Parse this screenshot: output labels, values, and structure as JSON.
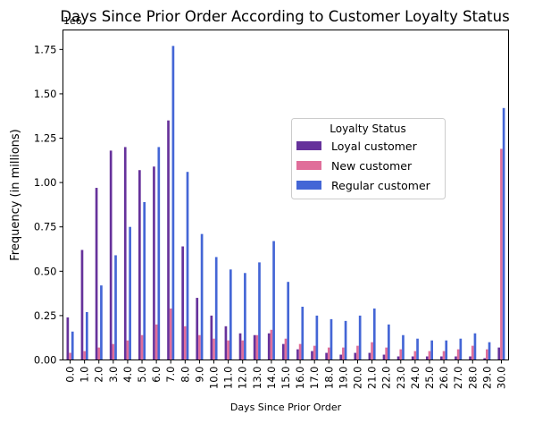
{
  "chart_data": {
    "type": "bar",
    "title": "Days Since Prior Order According to Customer Loyalty Status",
    "xlabel": "Days Since Prior Order",
    "ylabel": "Frequency (in millions)",
    "y_offset_text": "1e6",
    "ylim": [
      0,
      1.86
    ],
    "y_ticks": [
      0.0,
      0.25,
      0.5,
      0.75,
      1.0,
      1.25,
      1.5,
      1.75
    ],
    "y_tick_labels": [
      "0.00",
      "0.25",
      "0.50",
      "0.75",
      "1.00",
      "1.25",
      "1.50",
      "1.75"
    ],
    "categories": [
      "0.0",
      "1.0",
      "2.0",
      "3.0",
      "4.0",
      "5.0",
      "6.0",
      "7.0",
      "8.0",
      "9.0",
      "10.0",
      "11.0",
      "12.0",
      "13.0",
      "14.0",
      "15.0",
      "16.0",
      "17.0",
      "18.0",
      "19.0",
      "20.0",
      "21.0",
      "22.0",
      "23.0",
      "24.0",
      "25.0",
      "26.0",
      "27.0",
      "28.0",
      "29.0",
      "30.0"
    ],
    "legend": {
      "title": "Loyalty Status",
      "placement": "center-right"
    },
    "grid": false,
    "series": [
      {
        "name": "Loyal customer",
        "color": "#66329b",
        "values": [
          0.24,
          0.62,
          0.97,
          1.18,
          1.2,
          1.07,
          1.09,
          1.35,
          0.64,
          0.35,
          0.25,
          0.19,
          0.15,
          0.14,
          0.15,
          0.09,
          0.06,
          0.05,
          0.04,
          0.03,
          0.04,
          0.04,
          0.03,
          0.02,
          0.02,
          0.02,
          0.02,
          0.02,
          0.02,
          0.01,
          0.07
        ]
      },
      {
        "name": "New customer",
        "color": "#e06e9a",
        "values": [
          0.04,
          0.05,
          0.07,
          0.09,
          0.11,
          0.14,
          0.2,
          0.29,
          0.19,
          0.14,
          0.12,
          0.11,
          0.11,
          0.14,
          0.17,
          0.12,
          0.09,
          0.08,
          0.07,
          0.07,
          0.08,
          0.1,
          0.07,
          0.06,
          0.05,
          0.05,
          0.05,
          0.06,
          0.08,
          0.06,
          1.19
        ]
      },
      {
        "name": "Regular customer",
        "color": "#4466d6",
        "values": [
          0.16,
          0.27,
          0.42,
          0.59,
          0.75,
          0.89,
          1.2,
          1.77,
          1.06,
          0.71,
          0.58,
          0.51,
          0.49,
          0.55,
          0.67,
          0.44,
          0.3,
          0.25,
          0.23,
          0.22,
          0.25,
          0.29,
          0.2,
          0.14,
          0.12,
          0.11,
          0.11,
          0.12,
          0.15,
          0.1,
          1.42
        ]
      }
    ]
  }
}
